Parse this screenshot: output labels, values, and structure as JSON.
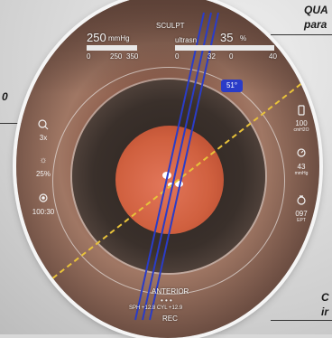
{
  "hud": {
    "mode": "SCULPT",
    "vac_value": "250",
    "vac_unit": "mmHg",
    "vac_scale": [
      "0",
      "250",
      "350"
    ],
    "center_label": "ultrasn",
    "power_value": "35",
    "power_unit": "%",
    "power_scale": [
      "0",
      "32",
      "0",
      "40"
    ],
    "angle": "51°",
    "phase": "ANTERIOR",
    "dots": "• • •",
    "sph_cyl": "SPH +12.8   CYL +12.9",
    "rec": "REC"
  },
  "left_panel": {
    "zoom_icon": "zoom-icon",
    "zoom_value": "3x",
    "brightness_icon": "sun-icon",
    "brightness_value": "25%",
    "record_icon": "record-icon",
    "time_value": "100:30"
  },
  "right_panel": {
    "bottle_icon": "bottle-icon",
    "bottle_value": "100",
    "bottle_unit": "cmH2O",
    "iop_icon": "gauge-icon",
    "iop_value": "43",
    "iop_unit": "mmHg",
    "timer_icon": "timer-icon",
    "timer_value": "097",
    "timer_unit": "EPT"
  },
  "callouts": {
    "top_right": "QUA",
    "top_right_2": "para",
    "left": "0",
    "bottom_right": "C",
    "bottom_right_2": "ir"
  },
  "colors": {
    "guide_line": "#2a3cc8",
    "dash_axis": "#e8c23a",
    "badge": "#2a3cc8"
  }
}
